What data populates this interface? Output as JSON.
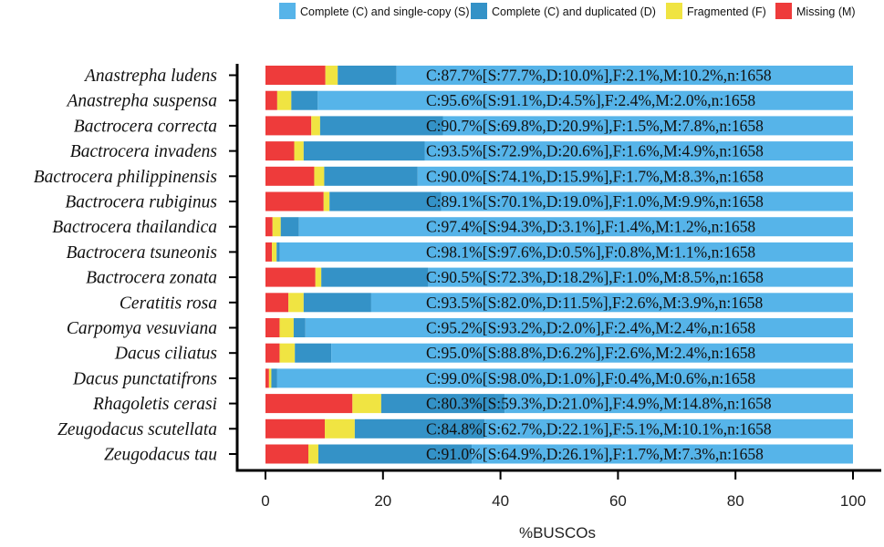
{
  "chart_data": {
    "type": "bar",
    "orientation": "horizontal",
    "stacked": true,
    "title": "",
    "xlabel": "%BUSCOs",
    "ylabel": "",
    "xlim": [
      0,
      100
    ],
    "xticks": [
      0,
      20,
      40,
      60,
      80,
      100
    ],
    "legend_position": "top",
    "series": [
      {
        "key": "M",
        "name": "Missing (M)",
        "color": "#EE3B3B"
      },
      {
        "key": "F",
        "name": "Fragmented (F)",
        "color": "#F0E442"
      },
      {
        "key": "D",
        "name": "Complete (C) and duplicated (D)",
        "color": "#3492C7"
      },
      {
        "key": "S",
        "name": "Complete (C) and single-copy (S)",
        "color": "#56B4E9"
      }
    ],
    "legend_order": [
      "S",
      "D",
      "F",
      "M"
    ],
    "categories": [
      {
        "name": "Anastrepha ludens",
        "S": 77.7,
        "D": 10.0,
        "F": 2.1,
        "M": 10.2,
        "label": "C:87.7%[S:77.7%,D:10.0%],F:2.1%,M:10.2%,n:1658"
      },
      {
        "name": "Anastrepha suspensa",
        "S": 91.1,
        "D": 4.5,
        "F": 2.4,
        "M": 2.0,
        "label": "C:95.6%[S:91.1%,D:4.5%],F:2.4%,M:2.0%,n:1658"
      },
      {
        "name": "Bactrocera correcta",
        "S": 69.8,
        "D": 20.9,
        "F": 1.5,
        "M": 7.8,
        "label": "C:90.7%[S:69.8%,D:20.9%],F:1.5%,M:7.8%,n:1658"
      },
      {
        "name": "Bactrocera invadens",
        "S": 72.9,
        "D": 20.6,
        "F": 1.6,
        "M": 4.9,
        "label": "C:93.5%[S:72.9%,D:20.6%],F:1.6%,M:4.9%,n:1658"
      },
      {
        "name": "Bactrocera philippinensis",
        "S": 74.1,
        "D": 15.9,
        "F": 1.7,
        "M": 8.3,
        "label": "C:90.0%[S:74.1%,D:15.9%],F:1.7%,M:8.3%,n:1658"
      },
      {
        "name": "Bactrocera rubiginus",
        "S": 70.1,
        "D": 19.0,
        "F": 1.0,
        "M": 9.9,
        "label": "C:89.1%[S:70.1%,D:19.0%],F:1.0%,M:9.9%,n:1658"
      },
      {
        "name": "Bactrocera thailandica",
        "S": 94.3,
        "D": 3.1,
        "F": 1.4,
        "M": 1.2,
        "label": "C:97.4%[S:94.3%,D:3.1%],F:1.4%,M:1.2%,n:1658"
      },
      {
        "name": "Bactrocera tsuneonis",
        "S": 97.6,
        "D": 0.5,
        "F": 0.8,
        "M": 1.1,
        "label": "C:98.1%[S:97.6%,D:0.5%],F:0.8%,M:1.1%,n:1658"
      },
      {
        "name": "Bactrocera zonata",
        "S": 72.3,
        "D": 18.2,
        "F": 1.0,
        "M": 8.5,
        "label": "C:90.5%[S:72.3%,D:18.2%],F:1.0%,M:8.5%,n:1658"
      },
      {
        "name": "Ceratitis rosa",
        "S": 82.0,
        "D": 11.5,
        "F": 2.6,
        "M": 3.9,
        "label": "C:93.5%[S:82.0%,D:11.5%],F:2.6%,M:3.9%,n:1658"
      },
      {
        "name": "Carpomya vesuviana",
        "S": 93.2,
        "D": 2.0,
        "F": 2.4,
        "M": 2.4,
        "label": "C:95.2%[S:93.2%,D:2.0%],F:2.4%,M:2.4%,n:1658"
      },
      {
        "name": "Dacus ciliatus",
        "S": 88.8,
        "D": 6.2,
        "F": 2.6,
        "M": 2.4,
        "label": "C:95.0%[S:88.8%,D:6.2%],F:2.6%,M:2.4%,n:1658"
      },
      {
        "name": "Dacus punctatifrons",
        "S": 98.0,
        "D": 1.0,
        "F": 0.4,
        "M": 0.6,
        "label": "C:99.0%[S:98.0%,D:1.0%],F:0.4%,M:0.6%,n:1658"
      },
      {
        "name": "Rhagoletis cerasi",
        "S": 59.3,
        "D": 21.0,
        "F": 4.9,
        "M": 14.8,
        "label": "C:80.3%[S:59.3%,D:21.0%],F:4.9%,M:14.8%,n:1658"
      },
      {
        "name": "Zeugodacus scutellata",
        "S": 62.7,
        "D": 22.1,
        "F": 5.1,
        "M": 10.1,
        "label": "C:84.8%[S:62.7%,D:22.1%],F:5.1%,M:10.1%,n:1658"
      },
      {
        "name": "Zeugodacus tau",
        "S": 64.9,
        "D": 26.1,
        "F": 1.7,
        "M": 7.3,
        "label": "C:91.0%[S:64.9%,D:26.1%],F:1.7%,M:7.3%,n:1658"
      }
    ]
  }
}
